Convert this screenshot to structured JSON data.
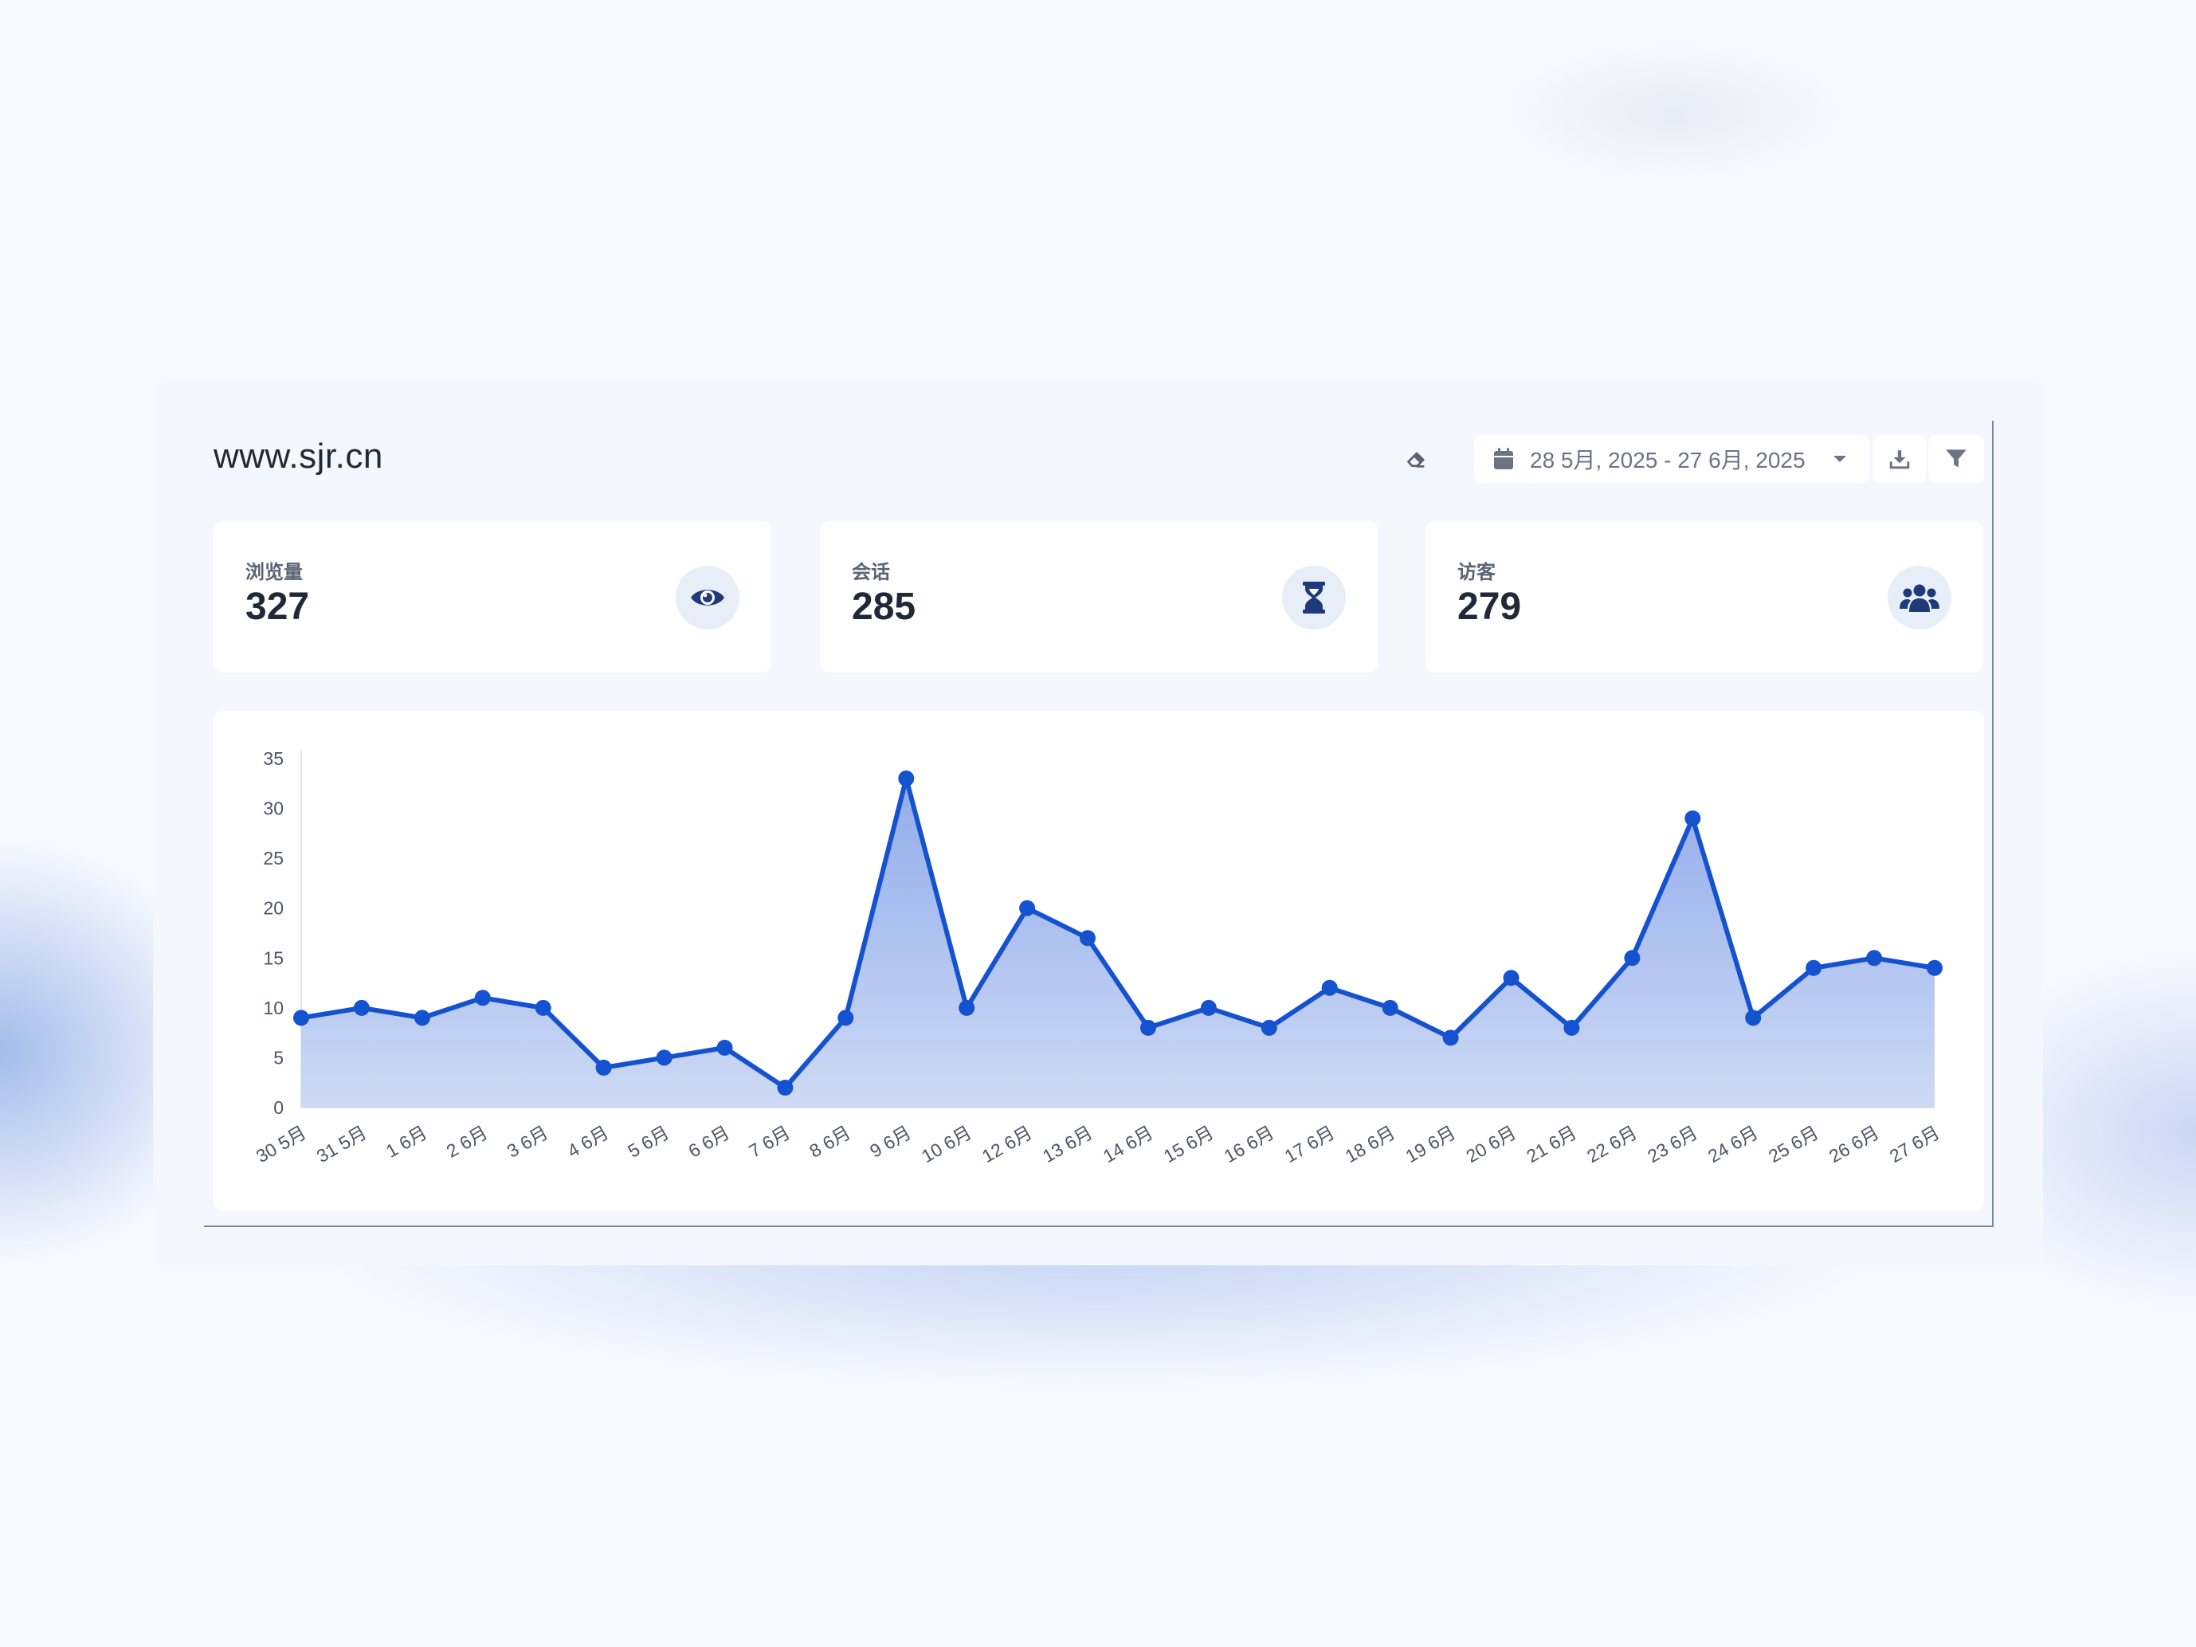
{
  "header": {
    "site_title": "www.sjr.cn",
    "date_range": "28 5月, 2025 - 27 6月, 2025"
  },
  "toolbar": {
    "clear_icon": "eraser-icon",
    "calendar_icon": "calendar-icon",
    "dropdown_icon": "caret-down-icon",
    "download_icon": "download-icon",
    "filter_icon": "filter-icon"
  },
  "stats": [
    {
      "label": "浏览量",
      "value": "327",
      "icon": "eye-icon"
    },
    {
      "label": "会话",
      "value": "285",
      "icon": "hourglass-icon"
    },
    {
      "label": "访客",
      "value": "279",
      "icon": "users-icon"
    }
  ],
  "colors": {
    "accent": "#1552d0",
    "icon_dark": "#1e3a7a",
    "text_dark": "#1f2937",
    "text_muted": "#6b7385"
  },
  "chart_data": {
    "type": "area",
    "categories": [
      "30 5月",
      "31 5月",
      "1 6月",
      "2 6月",
      "3 6月",
      "4 6月",
      "5 6月",
      "6 6月",
      "7 6月",
      "8 6月",
      "9 6月",
      "10 6月",
      "12 6月",
      "13 6月",
      "14 6月",
      "15 6月",
      "16 6月",
      "17 6月",
      "18 6月",
      "19 6月",
      "20 6月",
      "21 6月",
      "22 6月",
      "23 6月",
      "24 6月",
      "25 6月",
      "26 6月",
      "27 6月"
    ],
    "values": [
      9,
      10,
      9,
      11,
      10,
      4,
      5,
      6,
      2,
      9,
      33,
      10,
      20,
      17,
      8,
      10,
      8,
      12,
      10,
      7,
      13,
      8,
      15,
      29,
      9,
      14,
      15,
      14
    ],
    "ylim": [
      0,
      35
    ],
    "yticks": [
      0,
      5,
      10,
      15,
      20,
      25,
      30,
      35
    ],
    "title": "",
    "xlabel": "",
    "ylabel": "",
    "grid": false,
    "legend": "none"
  }
}
